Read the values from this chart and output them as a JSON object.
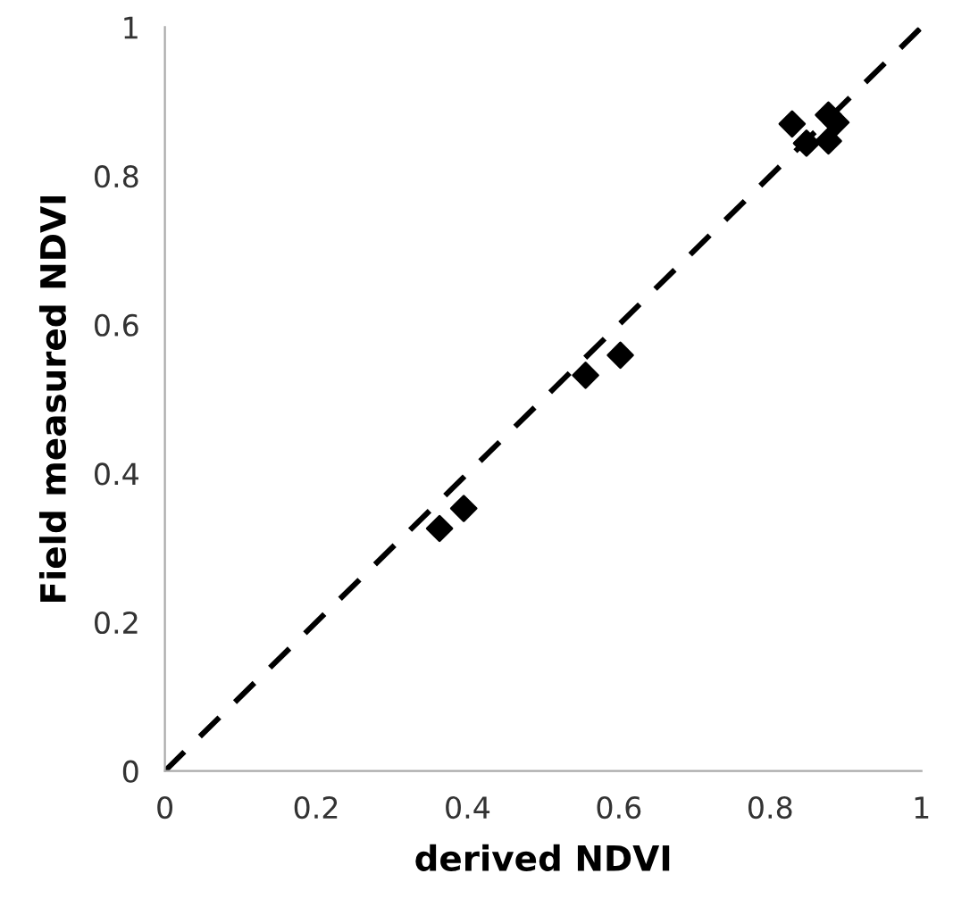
{
  "chart_data": {
    "type": "scatter",
    "xlabel": "derived NDVI",
    "ylabel": "Field measured NDVI",
    "xlim": [
      0,
      1
    ],
    "ylim": [
      0,
      1
    ],
    "xticks": [
      0,
      0.2,
      0.4,
      0.6,
      0.8,
      1
    ],
    "yticks": [
      0,
      0.2,
      0.4,
      0.6,
      0.8,
      1
    ],
    "grid": false,
    "legend": false,
    "series": [
      {
        "color": "#000000",
        "marker": "diamond",
        "x": [
          0.363,
          0.395,
          0.556,
          0.602,
          0.829,
          0.848,
          0.877,
          0.887,
          0.877
        ],
        "values": [
          0.326,
          0.353,
          0.532,
          0.559,
          0.87,
          0.844,
          0.882,
          0.872,
          0.847
        ]
      },
      {
        "type": "line",
        "color": "#000000",
        "line_style": "dashed",
        "marker": "none",
        "x": [
          0,
          1
        ],
        "values": [
          0,
          1
        ]
      }
    ]
  }
}
